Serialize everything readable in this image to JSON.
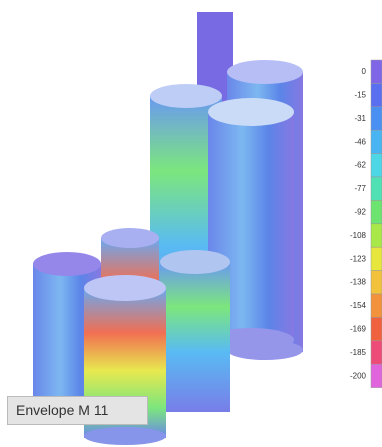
{
  "legend": {
    "labels": [
      "0",
      "-15",
      "-31",
      "-46",
      "-62",
      "-77",
      "-92",
      "-108",
      "-123",
      "-138",
      "-154",
      "-169",
      "-185",
      "-200"
    ],
    "colors": [
      "#7f66e6",
      "#5a6ef0",
      "#4a8ff2",
      "#48b4f2",
      "#4cd6e6",
      "#4fe0b4",
      "#6ee470",
      "#a8e848",
      "#e6e63c",
      "#f2c23c",
      "#f2923c",
      "#f0623f",
      "#ee4c78",
      "#e064dc"
    ]
  },
  "caption": "Envelope M 11"
}
